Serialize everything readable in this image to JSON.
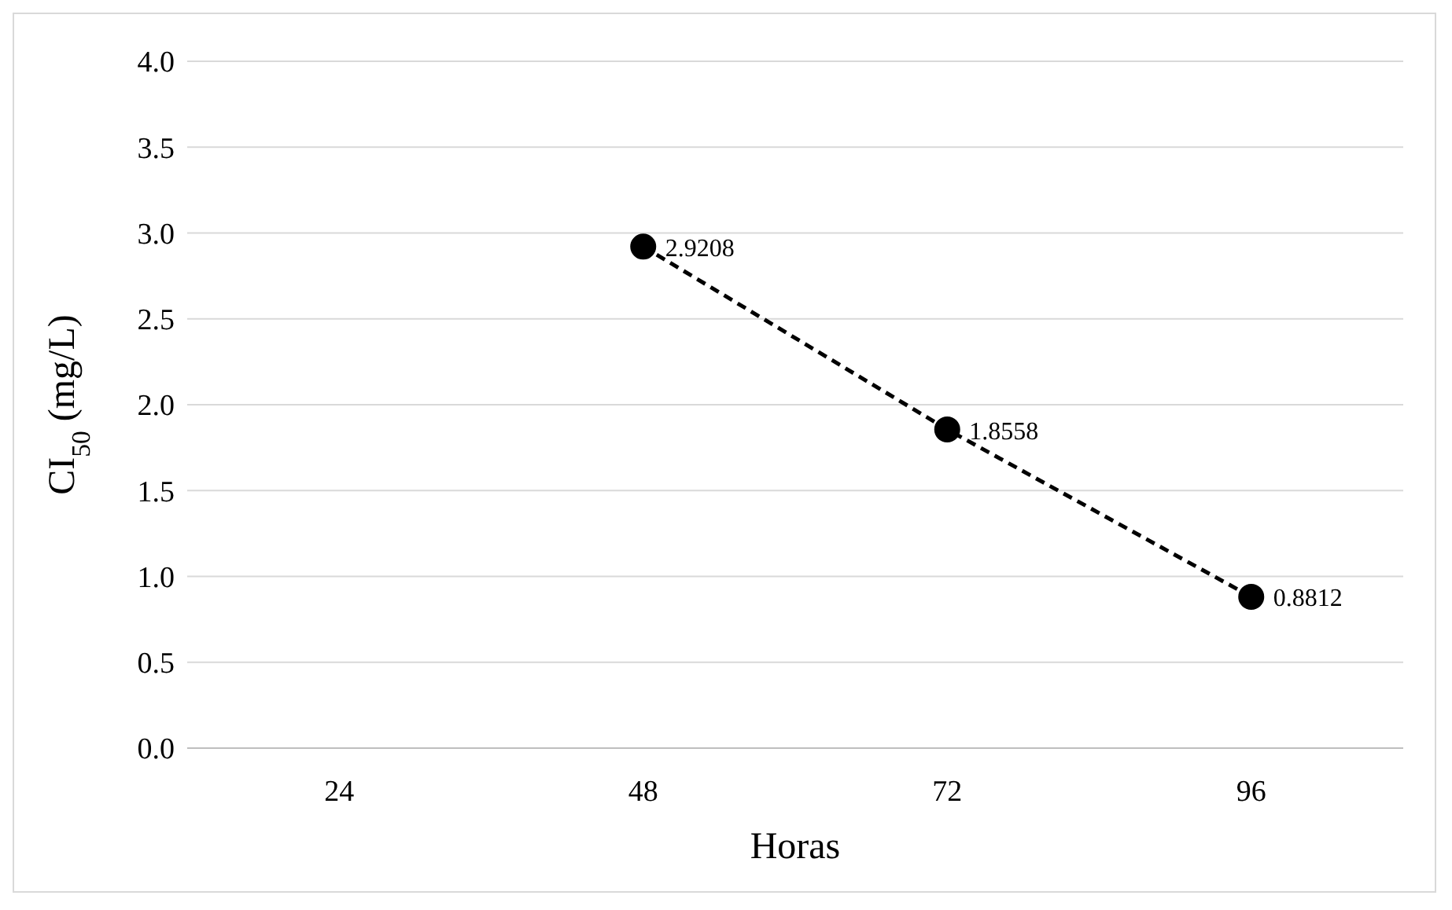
{
  "chart_data": {
    "type": "line",
    "xlabel": "Horas",
    "ylabel": "CI$_{50}$ (mg/L)",
    "categories": [
      "24",
      "48",
      "72",
      "96"
    ],
    "series": [
      {
        "color": "#000000",
        "values": [
          null,
          2.9208,
          1.8558,
          0.8812
        ]
      }
    ],
    "ylim": [
      0,
      4
    ],
    "yticks": [
      {
        "value": 0,
        "label": "0.0"
      },
      {
        "value": 0.5,
        "label": "0.5"
      },
      {
        "value": 1,
        "label": "1.0"
      },
      {
        "value": 1.5,
        "label": "1.5"
      },
      {
        "value": 2,
        "label": "2.0"
      },
      {
        "value": 2.5,
        "label": "2.5"
      },
      {
        "value": 3,
        "label": "3.0"
      },
      {
        "value": 3.5,
        "label": "3.5"
      },
      {
        "value": 4,
        "label": "4.0"
      }
    ],
    "grid": "y",
    "legend": false,
    "marker": "circle",
    "line_style": "dashed",
    "data_labels": true
  }
}
